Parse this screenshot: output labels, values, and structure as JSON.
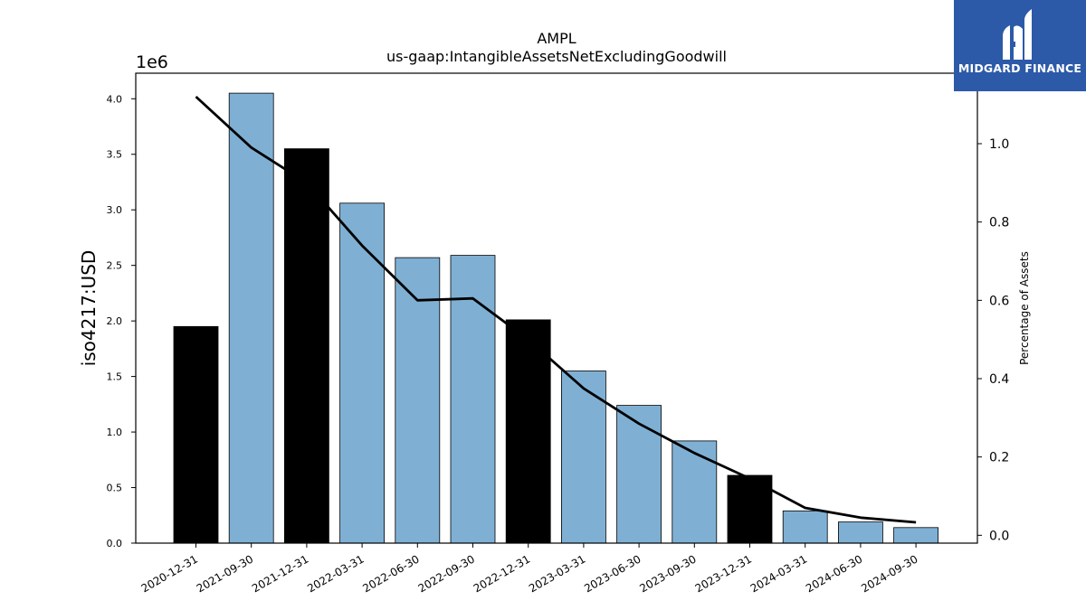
{
  "logo": {
    "text": "MIDGARD FINANCE",
    "icon": "midgard-finance-logo-icon",
    "background": "#2c5aa8"
  },
  "chart_data": {
    "type": "bar",
    "title": "AMPL",
    "subtitle": "us-gaap:IntangibleAssetsNetExcludingGoodwill",
    "ylabel": "iso4217:USD",
    "y2label": "Percentage of Assets",
    "offset_label": "1e6",
    "categories": [
      "2020-12-31",
      "2021-09-30",
      "2021-12-31",
      "2022-03-31",
      "2022-06-30",
      "2022-09-30",
      "2022-12-31",
      "2023-03-31",
      "2023-06-30",
      "2023-09-30",
      "2023-12-31",
      "2024-03-31",
      "2024-06-30",
      "2024-09-30"
    ],
    "series": [
      {
        "type": "bar",
        "values": [
          1950000,
          4050000,
          3550000,
          3060000,
          2570000,
          2590000,
          2010000,
          1550000,
          1240000,
          920000,
          610000,
          290000,
          190000,
          140000
        ],
        "colors": [
          "#000000",
          "#7fb0d4",
          "#000000",
          "#7fb0d4",
          "#7fb0d4",
          "#7fb0d4",
          "#000000",
          "#7fb0d4",
          "#7fb0d4",
          "#7fb0d4",
          "#000000",
          "#7fb0d4",
          "#7fb0d4",
          "#7fb0d4"
        ]
      },
      {
        "type": "line",
        "axis": "right",
        "color": "#000000",
        "values": [
          1.12,
          0.99,
          0.9,
          0.74,
          0.6,
          0.605,
          0.5,
          0.375,
          0.285,
          0.21,
          0.145,
          0.07,
          0.045,
          0.033
        ]
      }
    ],
    "ylim": [
      0,
      4230000
    ],
    "yticks": [
      0,
      500000,
      1000000,
      1500000,
      2000000,
      2500000,
      3000000,
      3500000,
      4000000
    ],
    "yticklabels": [
      "0.0",
      "0.5",
      "1.0",
      "1.5",
      "2.0",
      "2.5",
      "3.0",
      "3.5",
      "4.0"
    ],
    "y2lim": [
      -0.02,
      1.18
    ],
    "y2ticks": [
      0.0,
      0.2,
      0.4,
      0.6,
      0.8,
      1.0
    ],
    "y2ticklabels": [
      "0.0",
      "0.2",
      "0.4",
      "0.6",
      "0.8",
      "1.0"
    ],
    "grid": false,
    "legend": "none"
  }
}
